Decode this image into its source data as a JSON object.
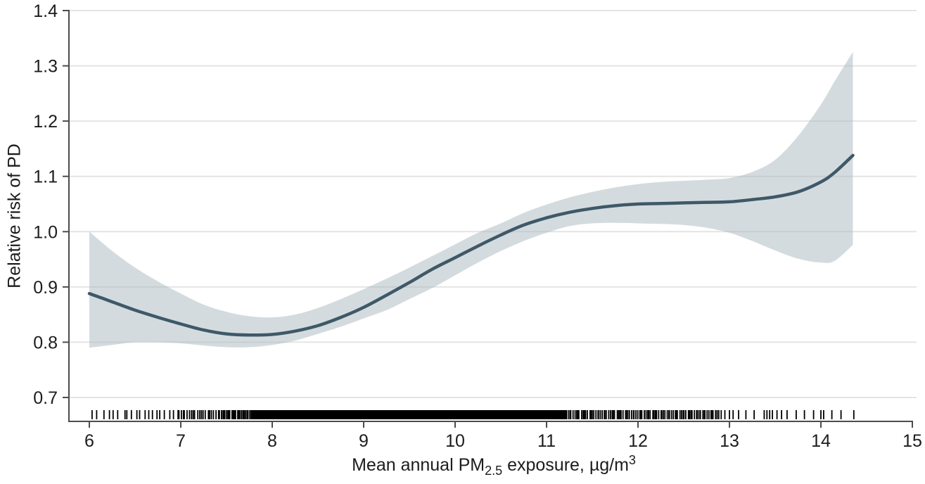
{
  "chart_data": {
    "type": "line",
    "title": "",
    "ylabel": "Relative risk of PD",
    "xlabel_plain": "Mean annual PM2.5 exposure, µg/m³",
    "xlabel_parts": {
      "prefix": "Mean annual PM",
      "subscript": "2.5",
      "middle": " exposure, µg/m",
      "superscript": "3"
    },
    "x_axis": {
      "min": 6,
      "max": 15,
      "ticks": [
        6,
        7,
        8,
        9,
        10,
        11,
        12,
        13,
        14,
        15
      ]
    },
    "y_axis": {
      "min": 0.7,
      "max": 1.4,
      "ticks": [
        0.7,
        0.8,
        0.9,
        1.0,
        1.1,
        1.2,
        1.3,
        1.4
      ]
    },
    "grid": "horizontal",
    "legend": "none",
    "x": [
      6.0,
      6.25,
      6.5,
      6.75,
      7.0,
      7.25,
      7.5,
      7.75,
      8.0,
      8.25,
      8.5,
      8.75,
      9.0,
      9.25,
      9.5,
      9.75,
      10.0,
      10.25,
      10.5,
      10.75,
      11.0,
      11.25,
      11.5,
      11.75,
      12.0,
      12.25,
      12.5,
      12.75,
      13.0,
      13.25,
      13.5,
      13.75,
      14.0,
      14.15,
      14.35
    ],
    "series": [
      {
        "name": "Relative risk of PD (spline estimate)",
        "values": [
          0.888,
          0.873,
          0.858,
          0.845,
          0.833,
          0.822,
          0.815,
          0.813,
          0.814,
          0.82,
          0.83,
          0.845,
          0.863,
          0.885,
          0.908,
          0.932,
          0.953,
          0.974,
          0.994,
          1.012,
          1.025,
          1.035,
          1.042,
          1.047,
          1.05,
          1.051,
          1.052,
          1.053,
          1.054,
          1.058,
          1.063,
          1.072,
          1.09,
          1.107,
          1.138
        ]
      },
      {
        "name": "95% CI upper bound",
        "values": [
          1.0,
          0.965,
          0.935,
          0.91,
          0.888,
          0.868,
          0.855,
          0.847,
          0.845,
          0.85,
          0.862,
          0.878,
          0.896,
          0.915,
          0.935,
          0.956,
          0.977,
          0.998,
          1.015,
          1.034,
          1.049,
          1.062,
          1.072,
          1.08,
          1.086,
          1.09,
          1.092,
          1.094,
          1.097,
          1.108,
          1.13,
          1.173,
          1.23,
          1.272,
          1.325
        ]
      },
      {
        "name": "95% CI lower bound",
        "values": [
          0.79,
          0.795,
          0.8,
          0.8,
          0.798,
          0.794,
          0.791,
          0.791,
          0.795,
          0.803,
          0.815,
          0.828,
          0.843,
          0.858,
          0.878,
          0.898,
          0.921,
          0.944,
          0.965,
          0.983,
          0.998,
          1.01,
          1.015,
          1.016,
          1.015,
          1.014,
          1.012,
          1.007,
          0.998,
          0.983,
          0.966,
          0.951,
          0.944,
          0.947,
          0.976
        ]
      }
    ],
    "rug": {
      "solid_ranges": [
        [
          7.78,
          11.22
        ]
      ],
      "dense_ranges": [
        {
          "from": 6.98,
          "to": 7.45,
          "count": 22
        },
        {
          "from": 7.45,
          "to": 7.79,
          "count": 30
        },
        {
          "from": 11.22,
          "to": 12.88,
          "count": 95
        }
      ],
      "ticks": [
        6.03,
        6.08,
        6.16,
        6.22,
        6.26,
        6.31,
        6.39,
        6.41,
        6.46,
        6.52,
        6.55,
        6.61,
        6.65,
        6.69,
        6.74,
        6.77,
        6.82,
        6.88,
        6.92,
        6.97,
        12.91,
        12.95,
        13.0,
        13.04,
        13.1,
        13.18,
        13.27,
        13.38,
        13.41,
        13.44,
        13.47,
        13.52,
        13.57,
        13.63,
        13.73,
        13.82,
        13.92,
        14.0,
        14.03,
        14.12,
        14.22,
        14.36
      ]
    },
    "colors": {
      "curve": "#3e5968",
      "band": "#aab7bf",
      "band_opacity": 0.5,
      "grid": "#e4e4e4",
      "axis": "#4c4c4c",
      "rug": "#000000",
      "label": "#1c1c1c"
    }
  }
}
